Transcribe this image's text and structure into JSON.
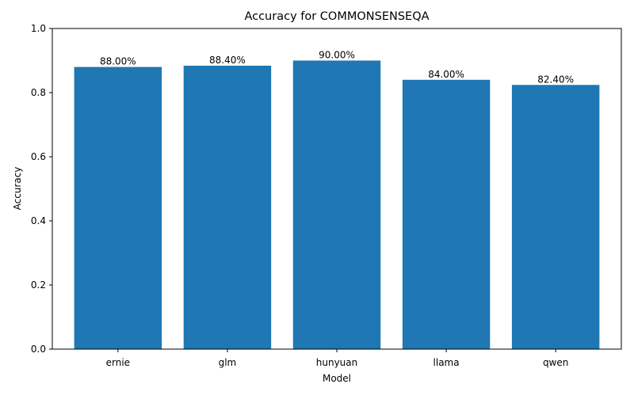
{
  "chart_data": {
    "type": "bar",
    "title": "Accuracy for COMMONSENSEQA",
    "xlabel": "Model",
    "ylabel": "Accuracy",
    "categories": [
      "ernie",
      "glm",
      "hunyuan",
      "llama",
      "qwen"
    ],
    "values": [
      0.88,
      0.884,
      0.9,
      0.84,
      0.824
    ],
    "data_labels": [
      "88.00%",
      "88.40%",
      "90.00%",
      "84.00%",
      "82.40%"
    ],
    "ylim": [
      0,
      1.0
    ],
    "yticks": [
      0.0,
      0.2,
      0.4,
      0.6,
      0.8,
      1.0
    ],
    "ytick_labels": [
      "0.0",
      "0.2",
      "0.4",
      "0.6",
      "0.8",
      "1.0"
    ],
    "grid": false,
    "bar_color": "#1f77b4"
  }
}
